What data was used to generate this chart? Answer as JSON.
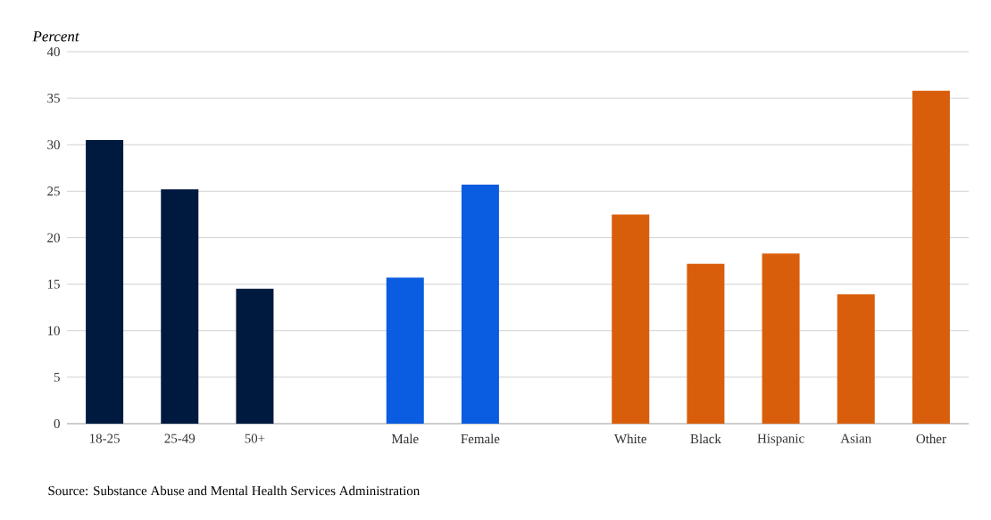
{
  "chart_data": {
    "type": "bar",
    "ylabel": "Percent",
    "categories": [
      "18-25",
      "25-49",
      "50+",
      null,
      "Male",
      "Female",
      null,
      "White",
      "Black",
      "Hispanic",
      "Asian",
      "Other"
    ],
    "values": [
      30.5,
      25.2,
      14.5,
      null,
      15.7,
      25.7,
      null,
      22.5,
      17.2,
      18.3,
      13.9,
      35.8
    ],
    "colors": [
      "#001a3f",
      "#001a3f",
      "#001a3f",
      null,
      "#0a5ce0",
      "#0a5ce0",
      null,
      "#d95e0b",
      "#d95e0b",
      "#d95e0b",
      "#d95e0b",
      "#d95e0b"
    ],
    "ylim": [
      0,
      40
    ],
    "yticks": [
      0,
      5,
      10,
      15,
      20,
      25,
      30,
      35,
      40
    ],
    "grid": "y",
    "annotations": [
      "Source: Substance Abuse and Mental Health Services Administration"
    ]
  }
}
